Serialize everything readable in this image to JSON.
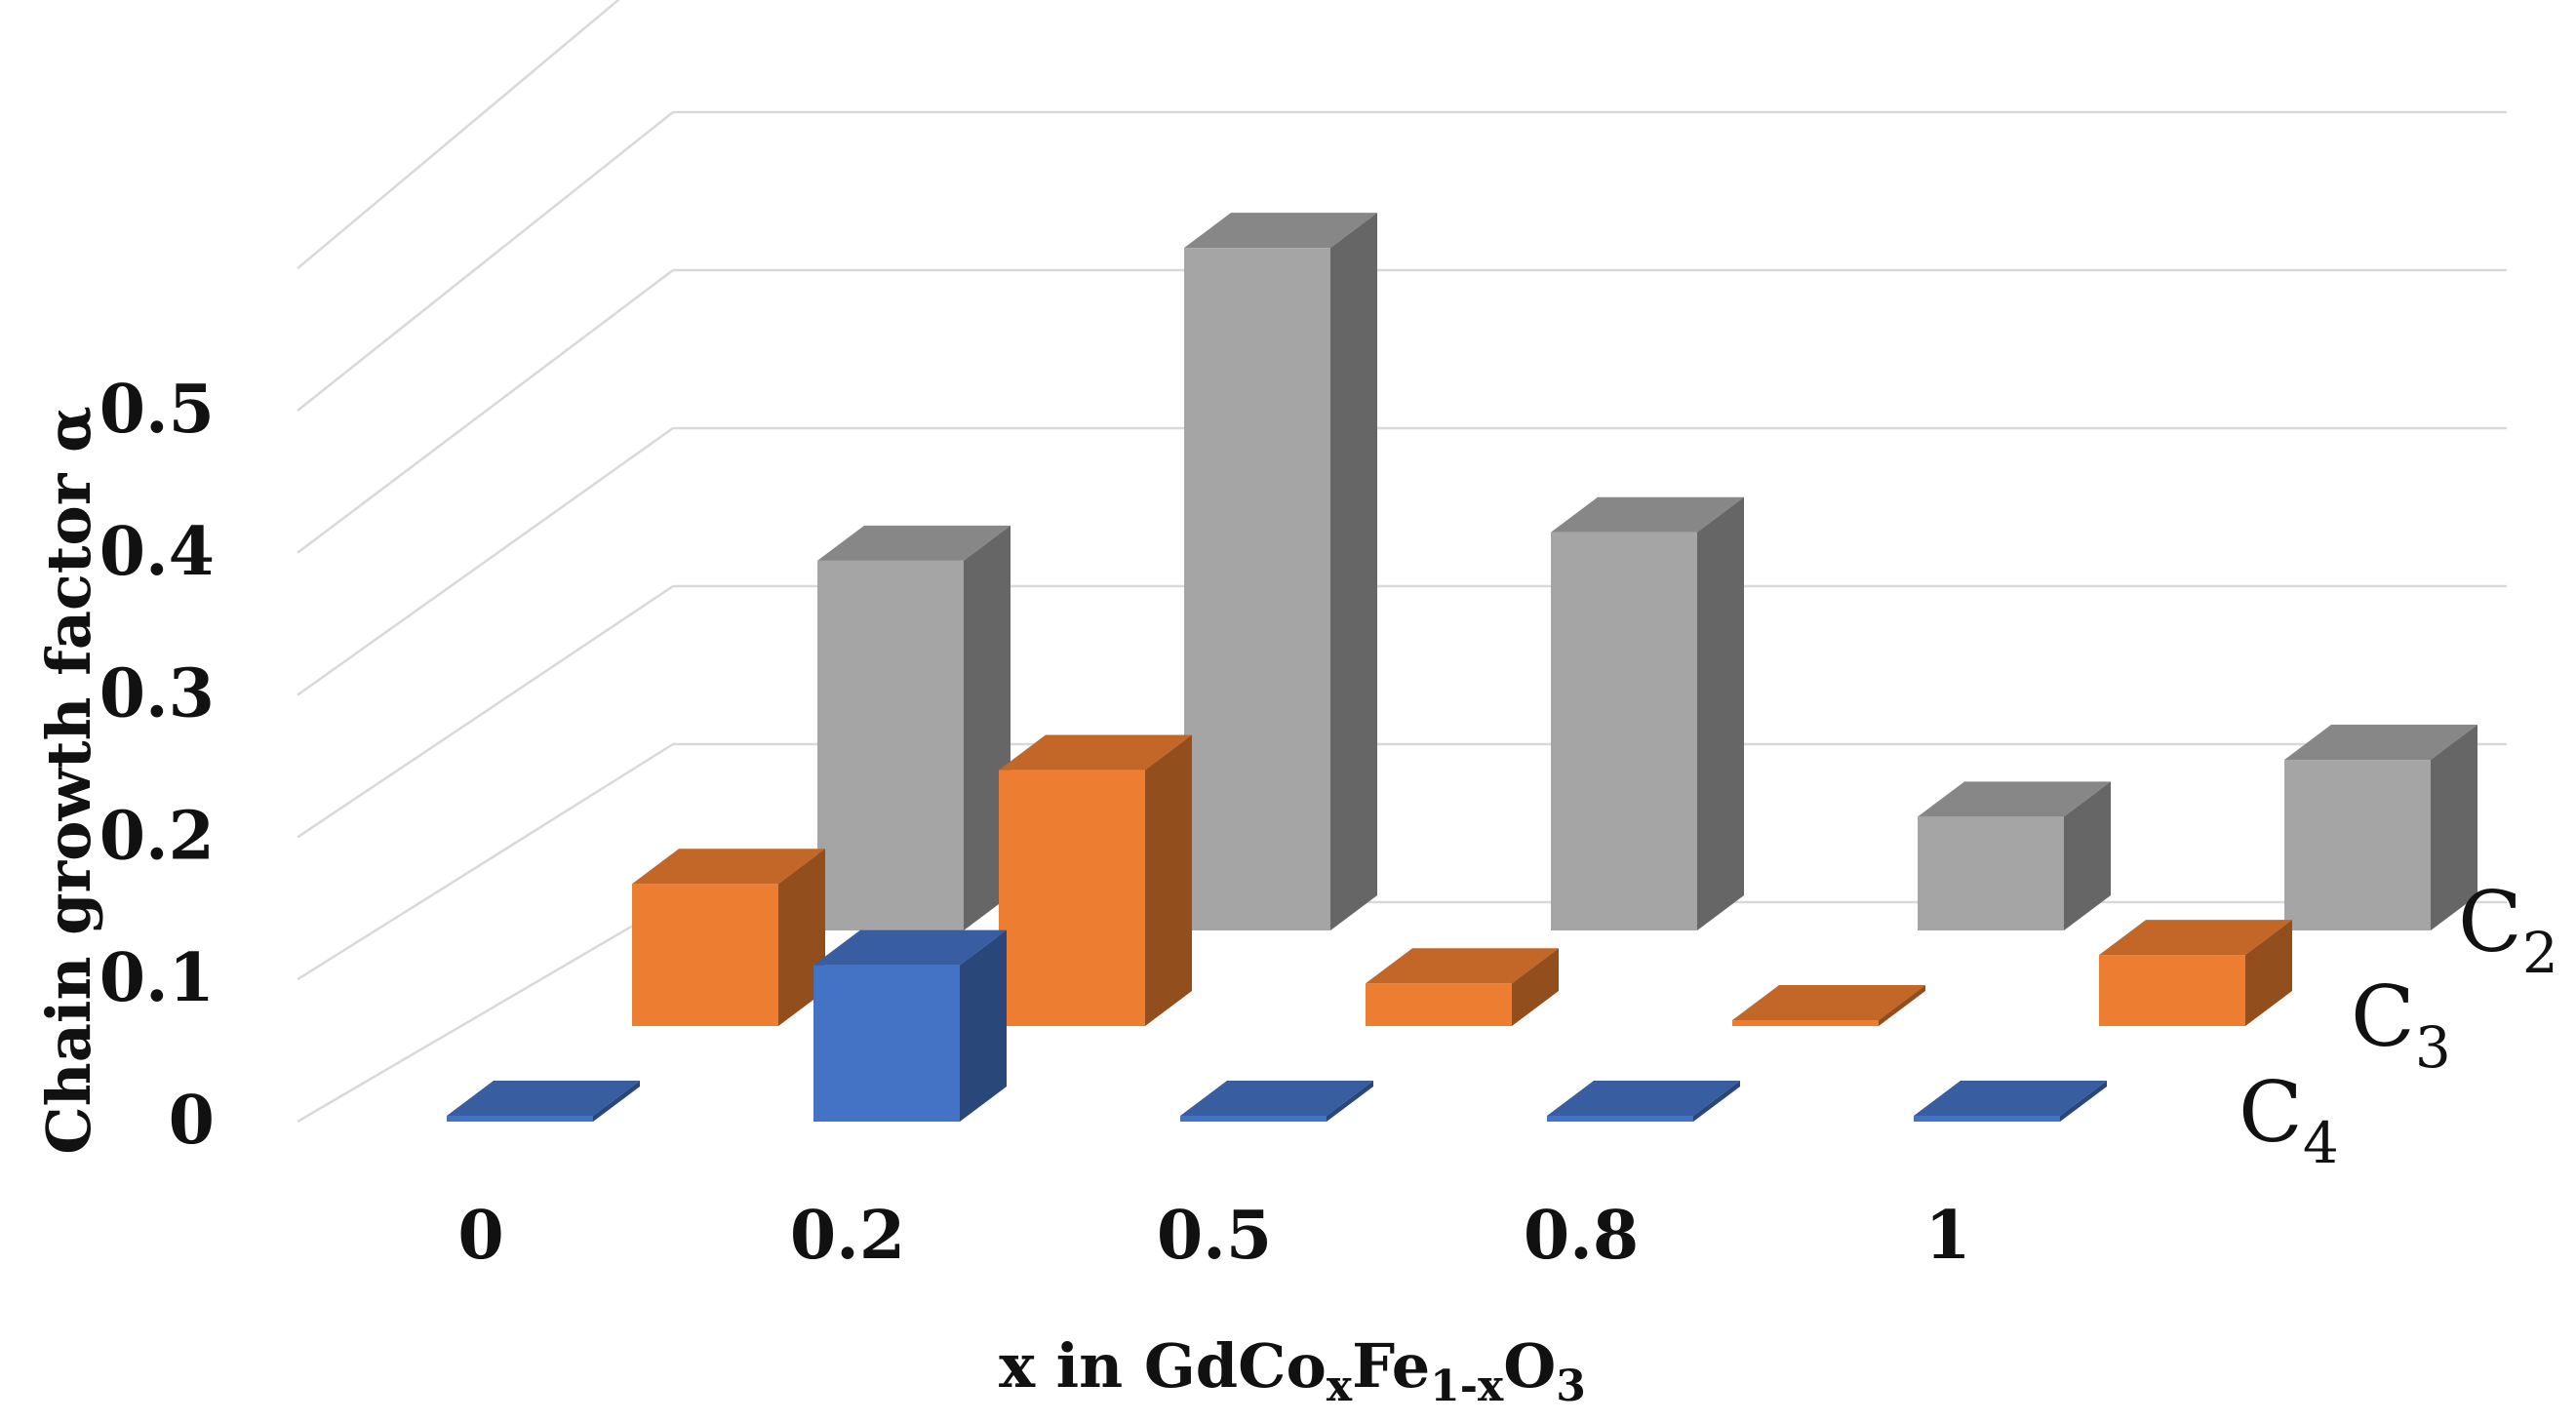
{
  "chart_data": {
    "type": "bar",
    "subtype": "3d-column",
    "categories": [
      "0",
      "0.2",
      "0.5",
      "0.8",
      "1"
    ],
    "series": [
      {
        "name": "C",
        "subscript": "2",
        "color": "#a5a5a5",
        "values": [
          0.26,
          0.48,
          0.28,
          0.08,
          0.12
        ]
      },
      {
        "name": "C",
        "subscript": "3",
        "color": "#ed7d31",
        "values": [
          0.1,
          0.18,
          0.03,
          0.0,
          0.05
        ]
      },
      {
        "name": "C",
        "subscript": "4",
        "color": "#4472c4",
        "values": [
          0.0,
          0.11,
          0.0,
          0.0,
          0.0
        ]
      }
    ],
    "yticks": [
      "0",
      "0.1",
      "0.2",
      "0.3",
      "0.4",
      "0.5"
    ],
    "ylim": [
      0,
      0.6
    ],
    "ylabel": "Chain growth factor α",
    "xlabel": {
      "parts": [
        "x in GdCo",
        "x",
        "Fe",
        "1-x",
        "O",
        "3"
      ]
    },
    "grid": true
  }
}
